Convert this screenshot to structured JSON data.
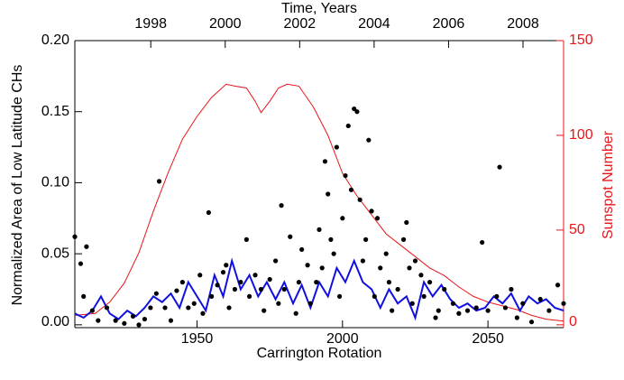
{
  "chart_data": {
    "type": "line",
    "x_label": "Carrington Rotation",
    "y_label": "Normalized Area of Low Latitude CHs",
    "y2_label": "Sunspot Number",
    "x2_label": "Time, Years",
    "xlim": [
      1908,
      2076
    ],
    "xticks": [
      1950,
      2000,
      2050
    ],
    "x2lim": [
      1995.96,
      2009.09
    ],
    "x2ticks": [
      1998,
      2000,
      2002,
      2004,
      2006,
      2008
    ],
    "ylim": [
      -0.002,
      0.2
    ],
    "yticks": [
      {
        "value": 0,
        "label": "0.00"
      },
      {
        "value": 0.05,
        "label": "0.05"
      },
      {
        "value": 0.1,
        "label": "0.10"
      },
      {
        "value": 0.15,
        "label": "0.15"
      },
      {
        "value": 0.2,
        "label": "0.20"
      }
    ],
    "y2lim": [
      -1.5,
      150
    ],
    "y2ticks": [
      0,
      50,
      100,
      150
    ],
    "y2_color": "#e8141a",
    "series": [
      {
        "type": "scatter",
        "color": "#000000",
        "x": [
          1908,
          1910,
          1912,
          1911,
          1914,
          1916,
          1919,
          1922,
          1925,
          1928,
          1930,
          1932,
          1934,
          1936,
          1937,
          1939,
          1941,
          1943,
          1945,
          1947,
          1949,
          1951,
          1952,
          1954,
          1955,
          1957,
          1959,
          1960,
          1961,
          1963,
          1965,
          1967,
          1968,
          1970,
          1972,
          1973,
          1975,
          1977,
          1978,
          1979,
          1980,
          1982,
          1984,
          1985,
          1986,
          1988,
          1989,
          1991,
          1992,
          1993,
          1994,
          1995,
          1996,
          1997,
          1998,
          1999,
          2000,
          2001,
          2002,
          2003,
          2004,
          2005,
          2006,
          2007,
          2008,
          2009,
          2010,
          2011,
          2012,
          2013,
          2015,
          2016,
          2017,
          2019,
          2021,
          2022,
          2023,
          2024,
          2025,
          2027,
          2028,
          2030,
          2032,
          2033,
          2035,
          2038,
          2040,
          2043,
          2046,
          2048,
          2050,
          2053,
          2054,
          2056,
          2058,
          2060,
          2062,
          2065,
          2068,
          2071,
          2074,
          2076
        ],
        "values": [
          0.062,
          0.043,
          0.055,
          0.02,
          0.01,
          0.003,
          0.012,
          0.003,
          0.001,
          0.006,
          0.0,
          0.004,
          0.012,
          0.022,
          0.101,
          0.012,
          0.003,
          0.024,
          0.03,
          0.012,
          0.015,
          0.035,
          0.008,
          0.079,
          0.02,
          0.028,
          0.037,
          0.042,
          0.012,
          0.025,
          0.03,
          0.06,
          0.02,
          0.035,
          0.025,
          0.01,
          0.032,
          0.045,
          0.015,
          0.084,
          0.025,
          0.062,
          0.008,
          0.03,
          0.053,
          0.042,
          0.015,
          0.03,
          0.067,
          0.04,
          0.115,
          0.092,
          0.06,
          0.05,
          0.125,
          0.02,
          0.075,
          0.105,
          0.14,
          0.095,
          0.152,
          0.15,
          0.088,
          0.045,
          0.06,
          0.13,
          0.08,
          0.02,
          0.075,
          0.04,
          0.05,
          0.03,
          0.01,
          0.025,
          0.06,
          0.072,
          0.04,
          0.015,
          0.045,
          0.035,
          0.02,
          0.03,
          0.005,
          0.01,
          0.025,
          0.015,
          0.008,
          0.01,
          0.012,
          0.058,
          0.01,
          0.02,
          0.111,
          0.012,
          0.025,
          0.005,
          0.015,
          0.002,
          0.018,
          0.01,
          0.028,
          0.015
        ]
      },
      {
        "type": "line",
        "color": "#1010e0",
        "x": [
          1908,
          1911,
          1914,
          1917,
          1920,
          1923,
          1926,
          1929,
          1932,
          1935,
          1938,
          1941,
          1944,
          1947,
          1950,
          1953,
          1956,
          1959,
          1962,
          1965,
          1968,
          1971,
          1974,
          1977,
          1980,
          1983,
          1986,
          1989,
          1992,
          1995,
          1998,
          2001,
          2004,
          2007,
          2010,
          2013,
          2016,
          2019,
          2022,
          2025,
          2028,
          2031,
          2034,
          2037,
          2040,
          2043,
          2046,
          2049,
          2052,
          2055,
          2058,
          2061,
          2064,
          2067,
          2070,
          2073,
          2076
        ],
        "values": [
          0.008,
          0.005,
          0.01,
          0.02,
          0.008,
          0.004,
          0.01,
          0.006,
          0.012,
          0.02,
          0.016,
          0.022,
          0.012,
          0.03,
          0.02,
          0.01,
          0.035,
          0.02,
          0.045,
          0.025,
          0.035,
          0.02,
          0.03,
          0.018,
          0.03,
          0.015,
          0.028,
          0.012,
          0.03,
          0.02,
          0.04,
          0.03,
          0.045,
          0.03,
          0.025,
          0.012,
          0.025,
          0.015,
          0.02,
          0.005,
          0.03,
          0.02,
          0.028,
          0.018,
          0.012,
          0.015,
          0.01,
          0.012,
          0.02,
          0.015,
          0.022,
          0.01,
          0.02,
          0.015,
          0.018,
          0.012,
          0.01
        ]
      },
      {
        "type": "line",
        "axis": "y2",
        "color": "#e8141a",
        "x": [
          1908,
          1915,
          1920,
          1925,
          1930,
          1935,
          1940,
          1945,
          1950,
          1955,
          1960,
          1963,
          1967,
          1970,
          1972,
          1975,
          1978,
          1981,
          1985,
          1990,
          1995,
          2000,
          2005,
          2010,
          2015,
          2020,
          2025,
          2030,
          2035,
          2040,
          2045,
          2050,
          2055,
          2060,
          2065,
          2070,
          2076
        ],
        "values": [
          5,
          6,
          12,
          22,
          38,
          60,
          80,
          98,
          110,
          120,
          127,
          126,
          125,
          118,
          112,
          118,
          125,
          127,
          126,
          115,
          100,
          80,
          68,
          58,
          48,
          42,
          36,
          30,
          26,
          20,
          15,
          12,
          10,
          8,
          5,
          3,
          2
        ]
      }
    ]
  }
}
